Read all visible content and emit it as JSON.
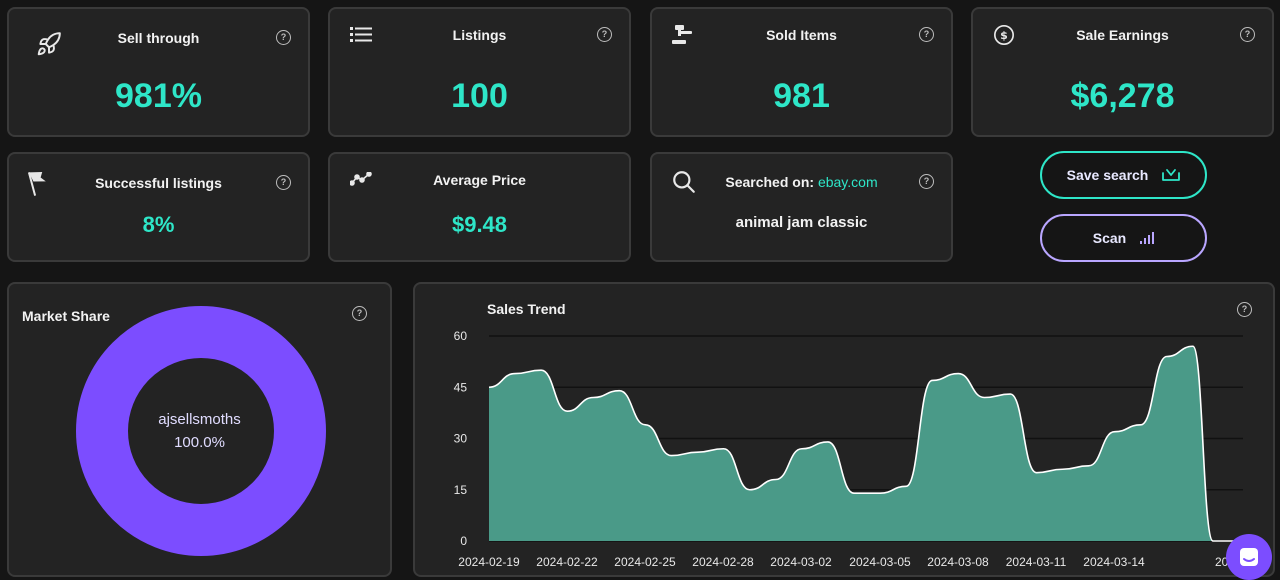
{
  "stats": {
    "sell_through": {
      "label": "Sell through",
      "value": "981%",
      "icon": "rocket-icon"
    },
    "listings": {
      "label": "Listings",
      "value": "100",
      "icon": "list-icon"
    },
    "sold_items": {
      "label": "Sold Items",
      "value": "981",
      "icon": "gavel-icon"
    },
    "sale_earnings": {
      "label": "Sale Earnings",
      "value": "$6,278",
      "icon": "dollar-icon"
    },
    "successful_listings": {
      "label": "Successful listings",
      "value": "8%",
      "icon": "flag-icon"
    },
    "average_price": {
      "label": "Average Price",
      "value": "$9.48",
      "icon": "trend-icon"
    }
  },
  "search": {
    "label": "Searched on:",
    "site": "ebay.com",
    "query": "animal jam classic",
    "icon": "search-icon"
  },
  "buttons": {
    "save_search": "Save search",
    "scan": "Scan"
  },
  "market_share": {
    "title": "Market Share",
    "seller": "ajsellsmoths",
    "percent": "100.0%",
    "color": "#7c4dff"
  },
  "colors": {
    "accent": "#2ee6c8",
    "purple": "#7c4dff",
    "area_fill": "#4a9a88"
  },
  "chart_data": {
    "type": "area",
    "title": "Sales Trend",
    "ylim": [
      0,
      60
    ],
    "yticks": [
      "0",
      "15",
      "30",
      "45",
      "60"
    ],
    "xticks": [
      "2024-02-19",
      "2024-02-22",
      "2024-02-25",
      "2024-02-28",
      "2024-03-02",
      "2024-03-05",
      "2024-03-08",
      "2024-03-11",
      "2024-03-14",
      "2024-0"
    ],
    "x": [
      "2024-02-19",
      "2024-02-20",
      "2024-02-21",
      "2024-02-22",
      "2024-02-23",
      "2024-02-24",
      "2024-02-25",
      "2024-02-26",
      "2024-02-27",
      "2024-02-28",
      "2024-02-29",
      "2024-03-01",
      "2024-03-02",
      "2024-03-03",
      "2024-03-04",
      "2024-03-05",
      "2024-03-06",
      "2024-03-07",
      "2024-03-08",
      "2024-03-09",
      "2024-03-10",
      "2024-03-11",
      "2024-03-12",
      "2024-03-13",
      "2024-03-14",
      "2024-03-15",
      "2024-03-16",
      "2024-03-17"
    ],
    "values": [
      45,
      49,
      50,
      38,
      42,
      44,
      34,
      25,
      26,
      27,
      15,
      18,
      27,
      29,
      14,
      14,
      16,
      47,
      49,
      42,
      43,
      20,
      21,
      22,
      32,
      34,
      54,
      57
    ],
    "grid": true
  }
}
